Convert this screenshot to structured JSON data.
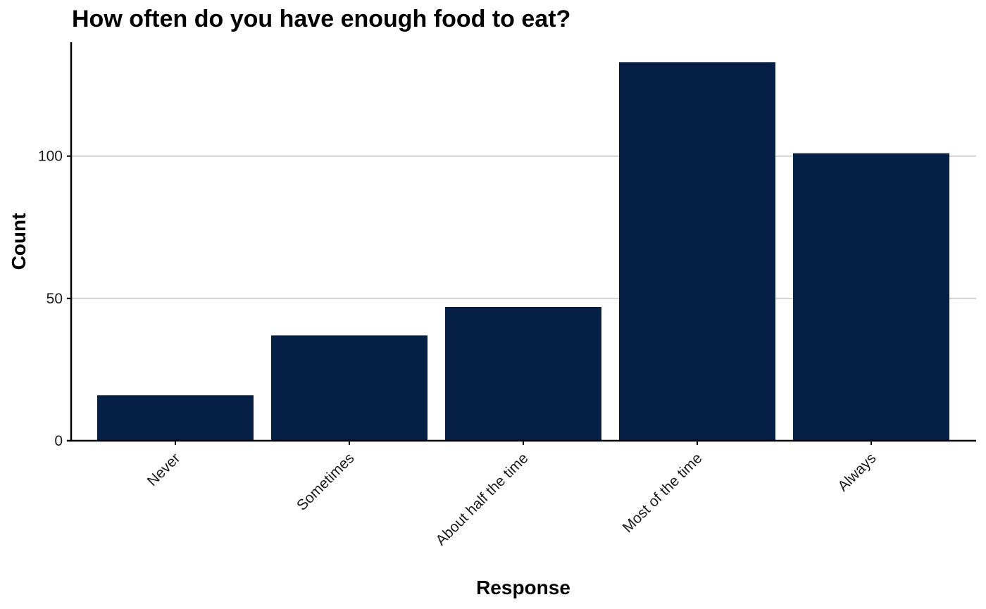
{
  "chart_data": {
    "type": "bar",
    "title": "How often do you have enough food to eat?",
    "xlabel": "Response",
    "ylabel": "Count",
    "categories": [
      "Never",
      "Sometimes",
      "About half the time",
      "Most of the time",
      "Always"
    ],
    "values": [
      16,
      37,
      47,
      133,
      101
    ],
    "ylim": [
      0,
      140
    ],
    "yticks": [
      0,
      50,
      100
    ],
    "ytick_labels": [
      "0",
      "50",
      "100"
    ],
    "bar_color": "#061f44",
    "grid": "horizontal major",
    "legend": "none"
  }
}
